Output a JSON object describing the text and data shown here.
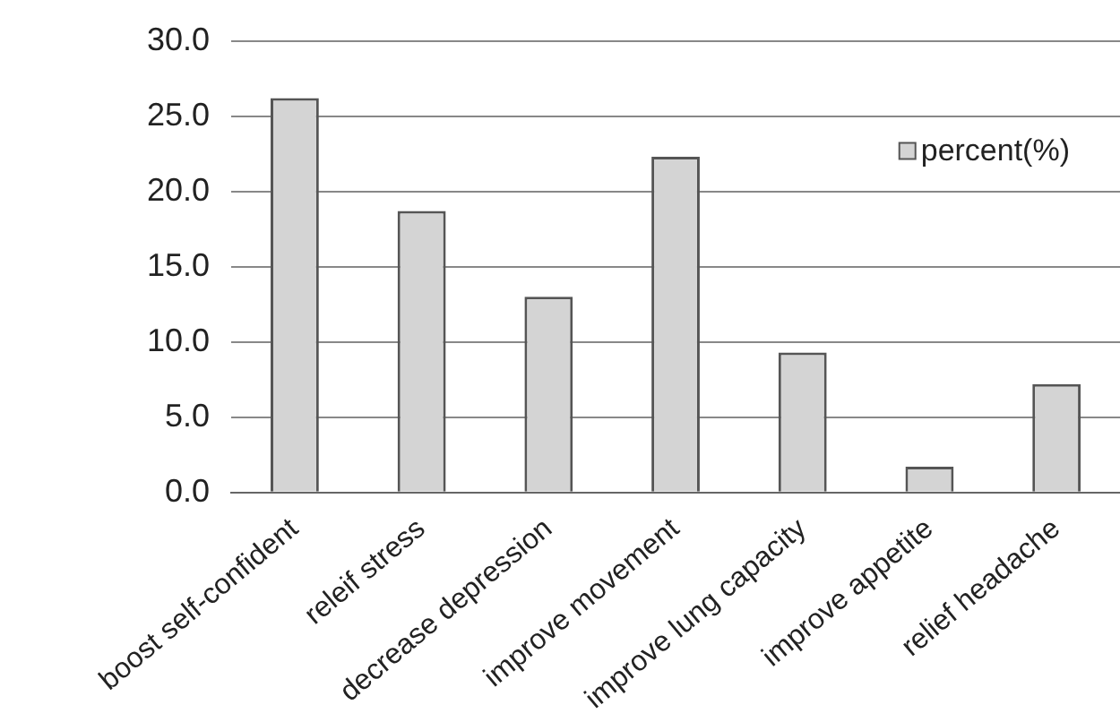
{
  "chart_data": {
    "type": "bar",
    "categories": [
      "boost self-confident",
      "releif stress",
      "decrease depression",
      "improve movement",
      "improve lung capacity",
      "improve appetite",
      "relief headache"
    ],
    "series": [
      {
        "name": "percent(%)",
        "color": "#d4d4d4",
        "values": [
          26.2,
          18.7,
          13.0,
          22.3,
          9.3,
          1.7,
          7.2
        ]
      }
    ],
    "ylim": [
      0,
      30
    ],
    "yticks": [
      {
        "value": 0,
        "label": "0.0"
      },
      {
        "value": 5,
        "label": "5.0"
      },
      {
        "value": 10,
        "label": "10.0"
      },
      {
        "value": 15,
        "label": "15.0"
      },
      {
        "value": 20,
        "label": "20.0"
      },
      {
        "value": 25,
        "label": "25.0"
      },
      {
        "value": 30,
        "label": "30.0"
      }
    ],
    "grid": "y",
    "legend": "top right"
  }
}
